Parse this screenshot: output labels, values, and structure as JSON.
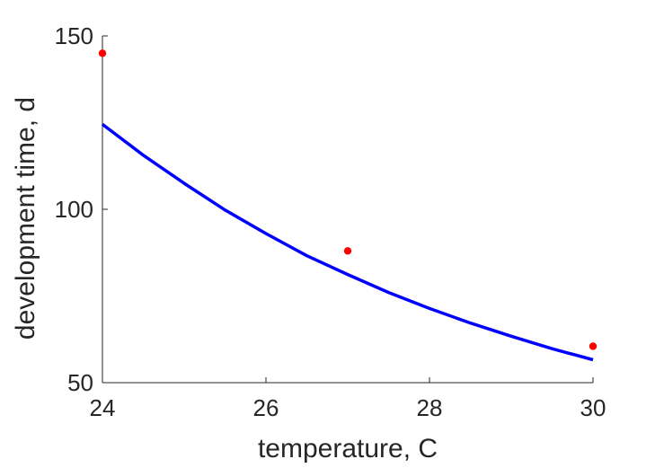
{
  "chart_data": {
    "type": "scatter",
    "xlabel": "temperature, C",
    "ylabel": "development time, d",
    "xlim": [
      24,
      30
    ],
    "ylim": [
      50,
      150
    ],
    "xticks": [
      24,
      26,
      28,
      30
    ],
    "yticks": [
      50,
      100,
      150
    ],
    "grid": false,
    "box": false,
    "series": [
      {
        "kind": "points",
        "color": "#ff0000",
        "x": [
          24,
          27,
          30
        ],
        "y": [
          145,
          88,
          60.5
        ]
      },
      {
        "kind": "line",
        "color": "#0000ff",
        "x": [
          24,
          24.5,
          25,
          25.5,
          26,
          26.5,
          27,
          27.5,
          28,
          28.5,
          29,
          29.5,
          30
        ],
        "y": [
          124.5,
          115.6,
          107.5,
          99.8,
          93.0,
          86.6,
          81.2,
          76.0,
          71.4,
          67.2,
          63.4,
          59.8,
          56.6
        ]
      }
    ]
  }
}
